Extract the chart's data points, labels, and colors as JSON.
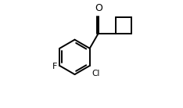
{
  "bg_color": "#ffffff",
  "line_color": "#000000",
  "lw": 1.4,
  "label_F": "F",
  "label_Cl": "Cl",
  "label_O": "O",
  "fig_width": 2.34,
  "fig_height": 1.38,
  "dpi": 100,
  "xlim": [
    0.0,
    1.0
  ],
  "ylim": [
    0.0,
    1.0
  ]
}
